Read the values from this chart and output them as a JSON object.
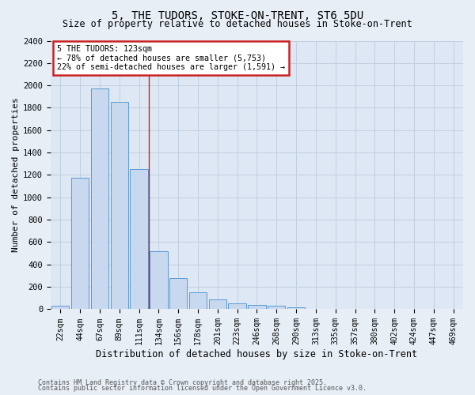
{
  "title1": "5, THE TUDORS, STOKE-ON-TRENT, ST6 5DU",
  "title2": "Size of property relative to detached houses in Stoke-on-Trent",
  "xlabel": "Distribution of detached houses by size in Stoke-on-Trent",
  "ylabel": "Number of detached properties",
  "categories": [
    "22sqm",
    "44sqm",
    "67sqm",
    "89sqm",
    "111sqm",
    "134sqm",
    "156sqm",
    "178sqm",
    "201sqm",
    "223sqm",
    "246sqm",
    "268sqm",
    "290sqm",
    "313sqm",
    "335sqm",
    "357sqm",
    "380sqm",
    "402sqm",
    "424sqm",
    "447sqm",
    "469sqm"
  ],
  "values": [
    30,
    1175,
    1975,
    1850,
    1250,
    520,
    280,
    155,
    90,
    50,
    40,
    30,
    15,
    5,
    3,
    2,
    2,
    2,
    2,
    2,
    2
  ],
  "bar_color": "#c8d8ee",
  "bar_edge_color": "#5a9ad4",
  "property_label": "5 THE TUDORS: 123sqm",
  "pct_smaller": 78,
  "n_smaller": 5753,
  "pct_larger": 22,
  "n_larger": 1591,
  "vline_x": 4.5,
  "ylim": [
    0,
    2400
  ],
  "yticks": [
    0,
    200,
    400,
    600,
    800,
    1000,
    1200,
    1400,
    1600,
    1800,
    2000,
    2200,
    2400
  ],
  "grid_color": "#c0cfe0",
  "bg_color": "#dde8f4",
  "fig_bg_color": "#e8eef6",
  "vline_color": "#cc2222",
  "box_edge_color": "#cc2222",
  "footnote1": "Contains HM Land Registry data © Crown copyright and database right 2025.",
  "footnote2": "Contains public sector information licensed under the Open Government Licence v3.0."
}
